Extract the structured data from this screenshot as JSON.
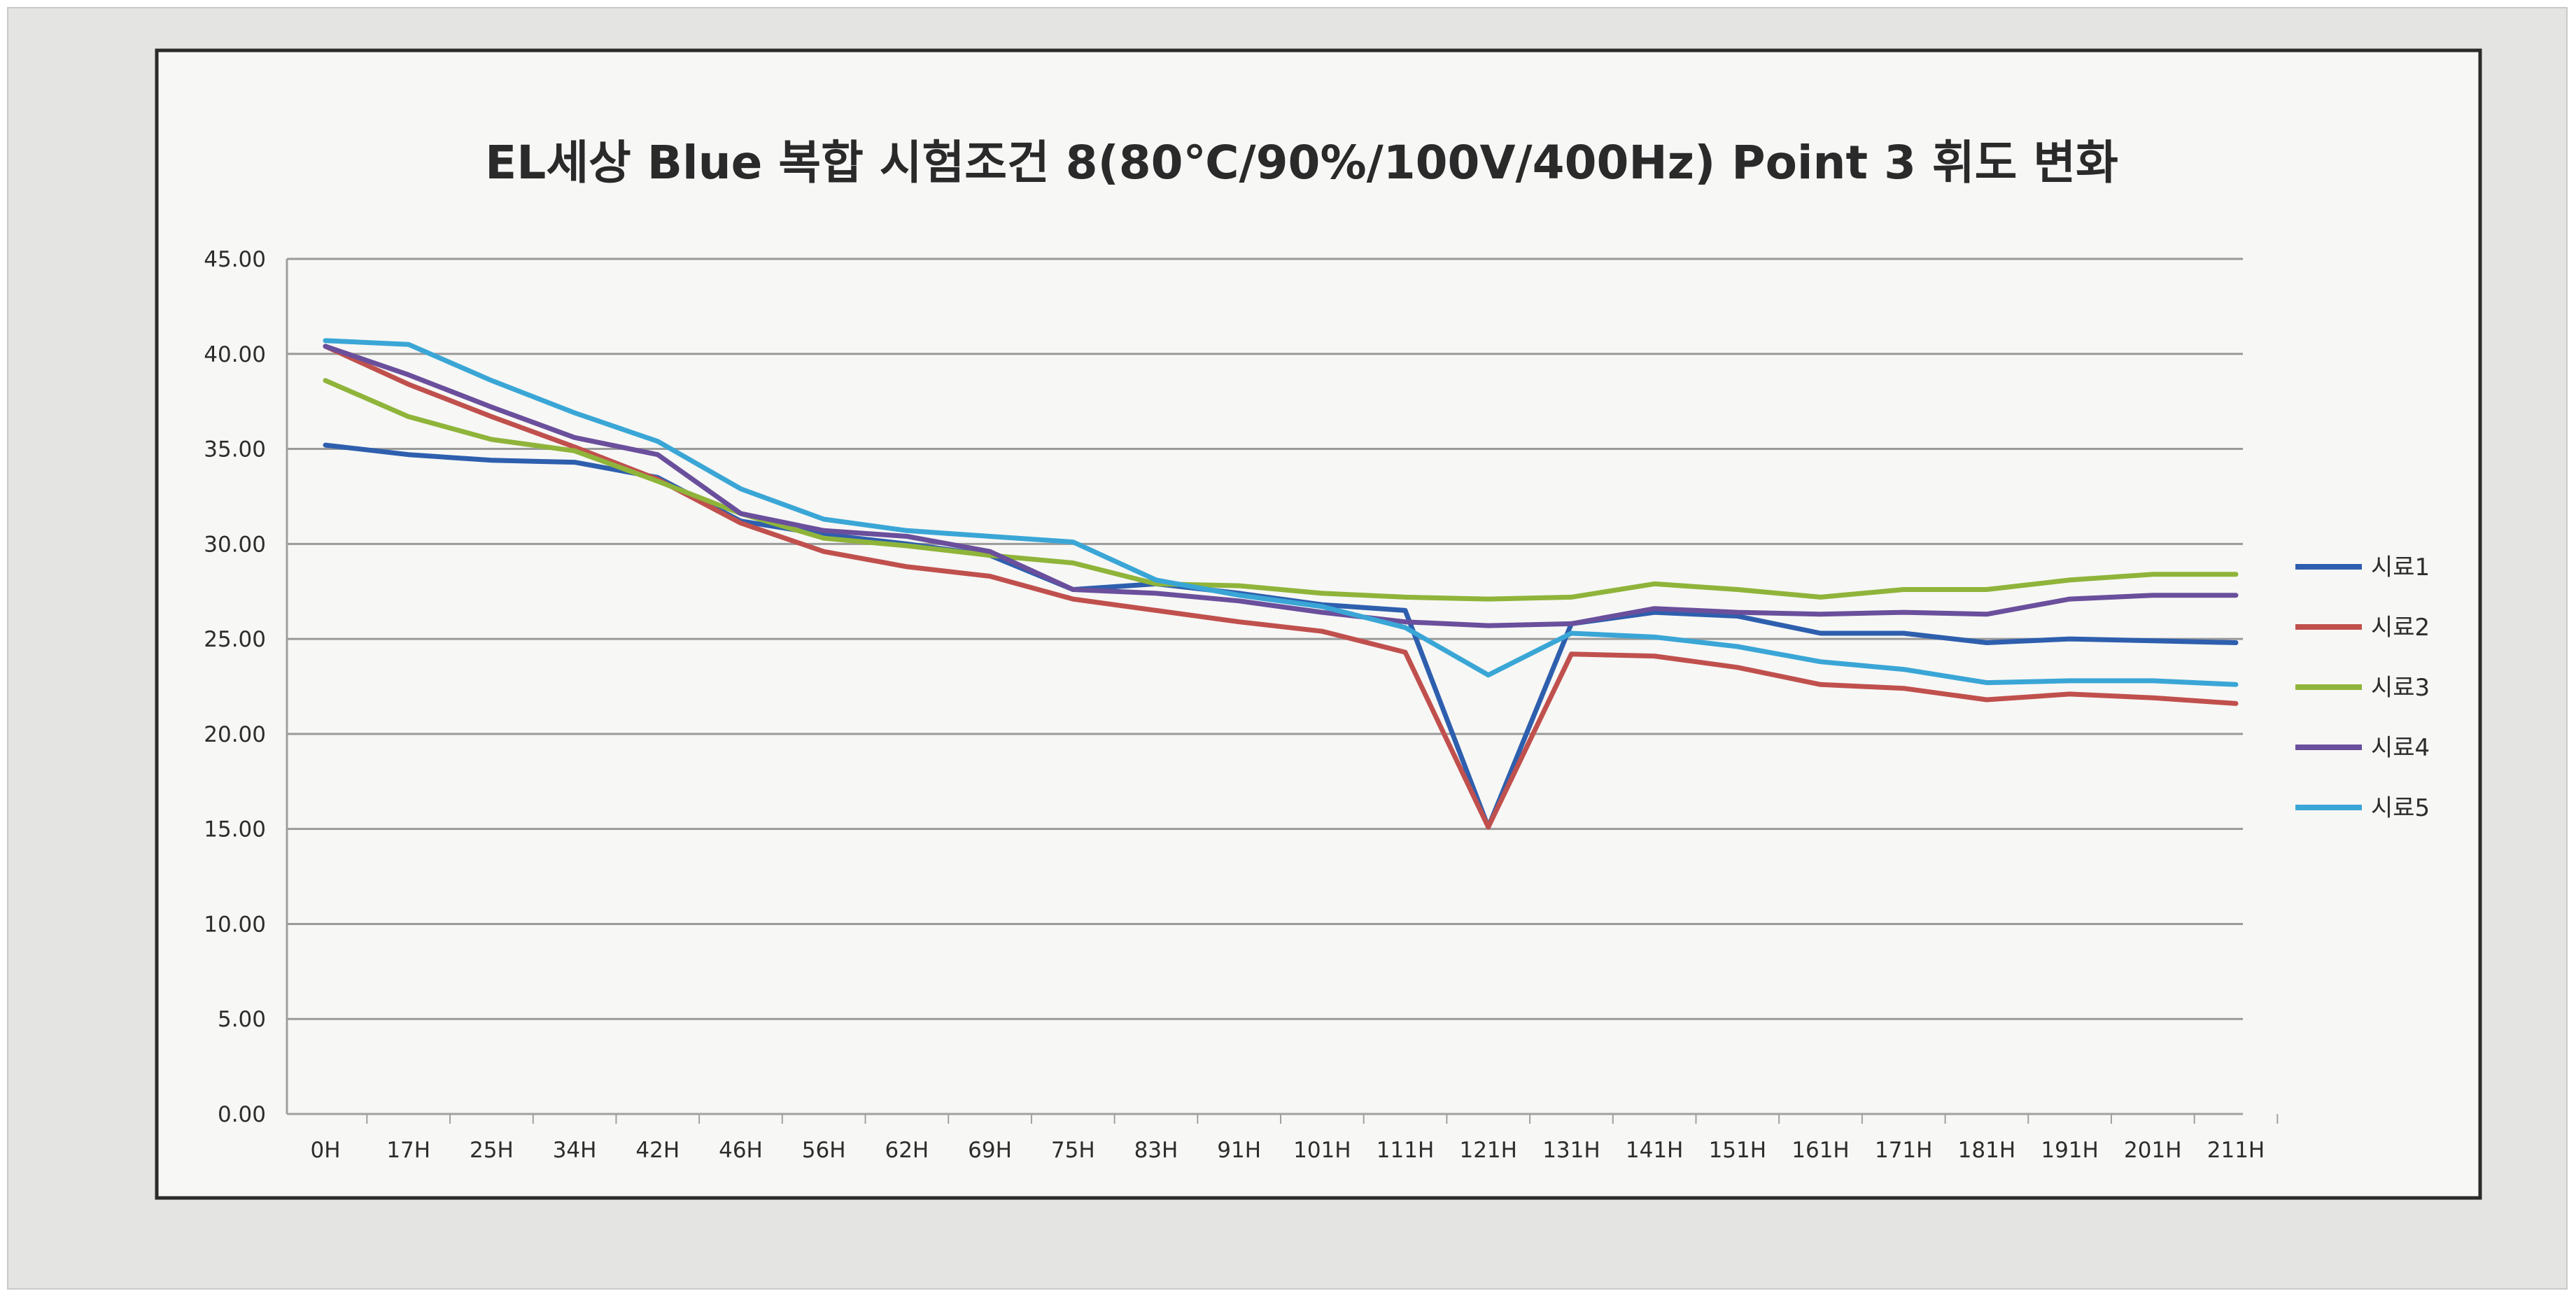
{
  "chart_data": {
    "type": "line",
    "title": "EL세상 Blue 복합 시험조건 8(80℃/90%/100V/400Hz) Point 3 휘도 변화",
    "xlabel": "",
    "ylabel": "",
    "ylim": [
      0,
      45
    ],
    "yticks": [
      "0.00",
      "5.00",
      "10.00",
      "15.00",
      "20.00",
      "25.00",
      "30.00",
      "35.00",
      "40.00",
      "45.00"
    ],
    "grid": true,
    "legend_position": "right",
    "categories": [
      "0H",
      "17H",
      "25H",
      "34H",
      "42H",
      "46H",
      "56H",
      "62H",
      "69H",
      "75H",
      "83H",
      "91H",
      "101H",
      "111H",
      "121H",
      "131H",
      "141H",
      "151H",
      "161H",
      "171H",
      "181H",
      "191H",
      "201H",
      "211H"
    ],
    "series": [
      {
        "name": "시료1",
        "color": "#2e5fae",
        "values": [
          35.2,
          34.7,
          34.4,
          34.3,
          33.5,
          31.2,
          30.5,
          30.0,
          29.4,
          27.6,
          27.9,
          27.4,
          26.8,
          26.5,
          15.1,
          25.8,
          26.4,
          26.2,
          25.3,
          25.3,
          24.8,
          25.0,
          24.9,
          24.8
        ]
      },
      {
        "name": "시료2",
        "color": "#c0504d",
        "values": [
          40.4,
          38.4,
          36.7,
          35.1,
          33.4,
          31.1,
          29.6,
          28.8,
          28.3,
          27.1,
          26.5,
          25.9,
          25.4,
          24.3,
          15.1,
          24.2,
          24.1,
          23.5,
          22.6,
          22.4,
          21.8,
          22.1,
          21.9,
          21.6
        ]
      },
      {
        "name": "시료3",
        "color": "#8fb43a",
        "values": [
          38.6,
          36.7,
          35.5,
          34.9,
          33.3,
          31.6,
          30.3,
          29.9,
          29.4,
          29.0,
          27.9,
          27.8,
          27.4,
          27.2,
          27.1,
          27.2,
          27.9,
          27.6,
          27.2,
          27.6,
          27.6,
          28.1,
          28.4,
          28.4
        ]
      },
      {
        "name": "시료4",
        "color": "#6a4f9c",
        "values": [
          40.4,
          38.9,
          37.2,
          35.6,
          34.7,
          31.6,
          30.7,
          30.4,
          29.6,
          27.6,
          27.4,
          27.0,
          26.4,
          25.9,
          25.7,
          25.8,
          26.6,
          26.4,
          26.3,
          26.4,
          26.3,
          27.1,
          27.3,
          27.3
        ]
      },
      {
        "name": "시료5",
        "color": "#3aa6d6",
        "values": [
          40.7,
          40.5,
          38.6,
          36.9,
          35.4,
          32.9,
          31.3,
          30.7,
          30.4,
          30.1,
          28.1,
          27.3,
          26.7,
          25.6,
          23.1,
          25.3,
          25.1,
          24.6,
          23.8,
          23.4,
          22.7,
          22.8,
          22.8,
          22.6
        ]
      }
    ]
  }
}
